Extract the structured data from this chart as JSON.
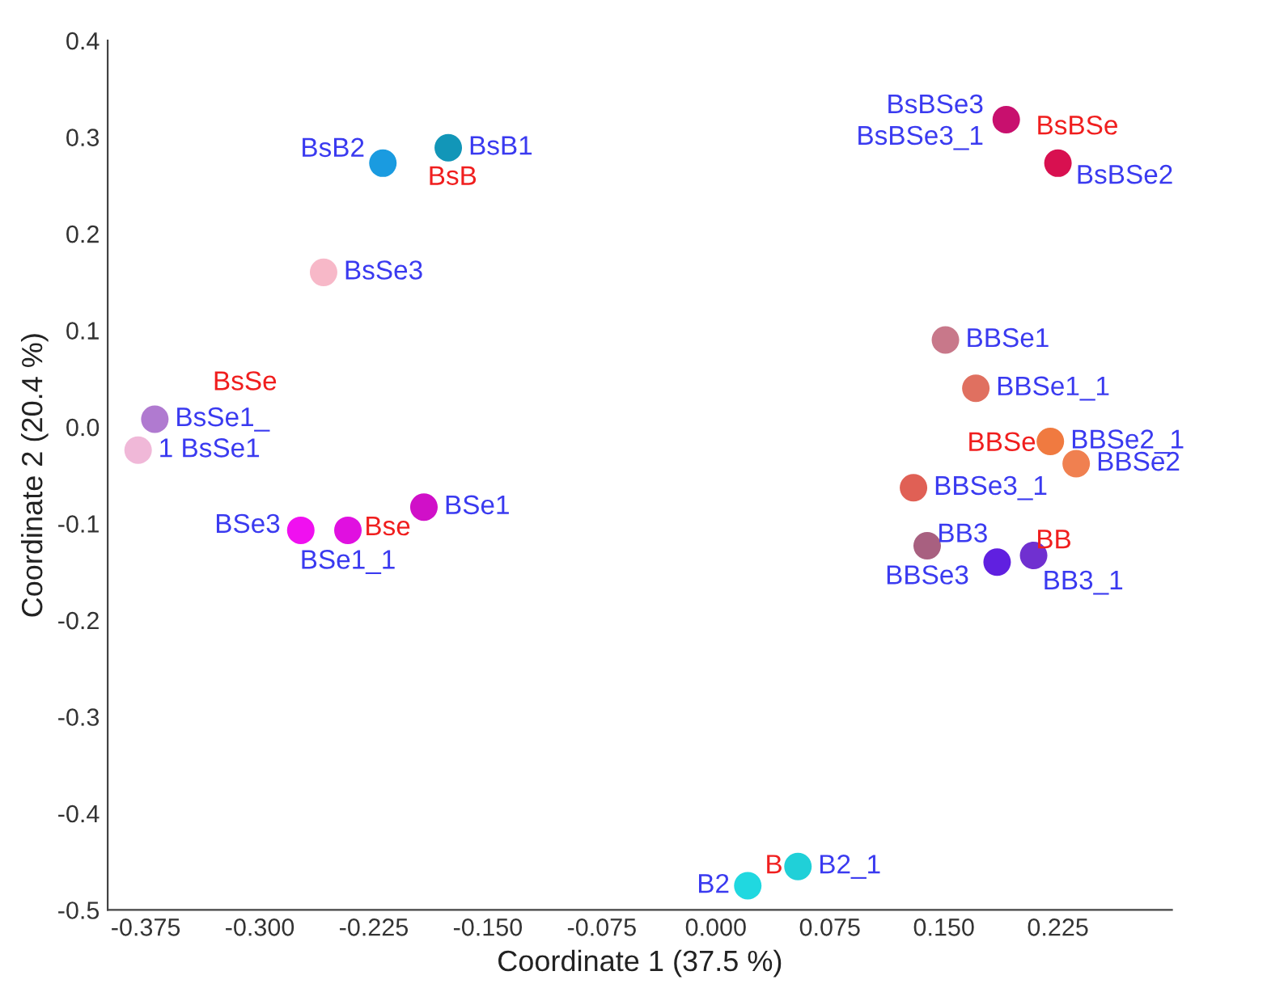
{
  "chart_data": {
    "type": "scatter",
    "xlabel": "Coordinate 1 (37.5 %)",
    "ylabel": "Coordinate 2 (20.4 %)",
    "x": [
      -0.219,
      -0.176,
      -0.258,
      -0.369,
      -0.38,
      -0.273,
      -0.242,
      -0.192,
      0.187,
      0.191,
      0.225,
      0.151,
      0.171,
      0.22,
      0.237,
      0.13,
      0.139,
      0.185,
      0.209,
      0.021,
      0.054
    ],
    "values": [
      0.273,
      0.289,
      0.16,
      0.008,
      -0.024,
      -0.107,
      -0.107,
      -0.083,
      null,
      0.318,
      0.273,
      0.09,
      0.04,
      -0.015,
      -0.038,
      -0.063,
      -0.123,
      -0.14,
      -0.133,
      -0.475,
      -0.455
    ],
    "colors": [
      "#1a9be0",
      "#1296b8",
      "#f7b8c8",
      "#b07ad0",
      "#f0b8d8",
      "#f010f0",
      "#e010e0",
      "#d010c8",
      "#d0106a",
      "#c8106e",
      "#d81050",
      "#c8788a",
      "#e07060",
      "#f07a40",
      "#f08050",
      "#e06055",
      "#a86080",
      "#6020e0",
      "#7030d0",
      "#20d8e0",
      "#20d0d8"
    ],
    "marker": "circle",
    "xlim": [
      -0.4,
      0.3
    ],
    "ylim": [
      -0.5,
      0.4
    ],
    "xticks": [
      {
        "value": -0.375,
        "label": "-0.375"
      },
      {
        "value": -0.3,
        "label": "-0.300"
      },
      {
        "value": -0.225,
        "label": "-0.225"
      },
      {
        "value": -0.15,
        "label": "-0.150"
      },
      {
        "value": -0.075,
        "label": "-0.075"
      },
      {
        "value": 0,
        "label": "0.000"
      },
      {
        "value": 0.075,
        "label": "0.075"
      },
      {
        "value": 0.15,
        "label": "0.150"
      },
      {
        "value": 0.225,
        "label": "0.225"
      }
    ],
    "yticks": [
      -0.5,
      -0.4,
      -0.3,
      -0.2,
      -0.1,
      {
        "value": 0,
        "label": "0.0"
      },
      0.1,
      0.2,
      0.3,
      0.4
    ],
    "grid": false,
    "annotations": [
      {
        "text": "BsB2",
        "x": -0.219,
        "y": 0.273
      },
      {
        "text": "BsB1",
        "x": -0.176,
        "y": 0.289
      },
      {
        "text": "BsSe3",
        "x": -0.258,
        "y": 0.16
      },
      {
        "text": "BsSe1_",
        "x": -0.369,
        "y": 0.008
      },
      {
        "text": "1 BsSe1",
        "x": -0.38,
        "y": -0.024
      },
      {
        "text": "BSe3",
        "x": -0.273,
        "y": -0.107
      },
      {
        "text": "BSe1_1",
        "x": -0.242,
        "y": -0.107
      },
      {
        "text": "BSe1",
        "x": -0.192,
        "y": -0.083
      },
      {
        "text": "BsBSe3",
        "x": 0.191,
        "y": 0.318
      },
      {
        "text": "BsBSe3_1",
        "x": 0.191,
        "y": 0.318
      },
      {
        "text": "BsBSe2",
        "x": 0.225,
        "y": 0.273
      },
      {
        "text": "BBSe1",
        "x": 0.151,
        "y": 0.09
      },
      {
        "text": "BBSe1_1",
        "x": 0.171,
        "y": 0.04
      },
      {
        "text": "BBSe2_1",
        "x": 0.22,
        "y": -0.015
      },
      {
        "text": "BBSe2",
        "x": 0.237,
        "y": -0.038
      },
      {
        "text": "BBSe3_1",
        "x": 0.13,
        "y": -0.063
      },
      {
        "text": "BBSe3",
        "x": 0.139,
        "y": -0.123
      },
      {
        "text": "BB3",
        "x": 0.185,
        "y": -0.14
      },
      {
        "text": "BB3_1",
        "x": 0.209,
        "y": -0.133
      },
      {
        "text": "B2",
        "x": 0.021,
        "y": -0.475
      },
      {
        "text": "B2_1",
        "x": 0.054,
        "y": -0.455
      },
      "BsB",
      "BsSe",
      "Bse",
      "BsBSe",
      "BBSe",
      "BB",
      "B"
    ]
  }
}
